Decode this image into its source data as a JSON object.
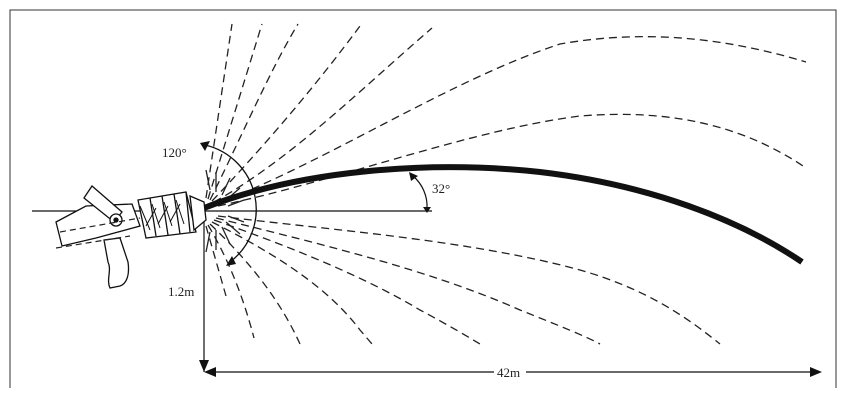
{
  "diagram": {
    "labels": {
      "spray_angle": "120°",
      "jet_angle": "32°",
      "nozzle_height": "1.2m",
      "throw_distance": "42m"
    }
  }
}
